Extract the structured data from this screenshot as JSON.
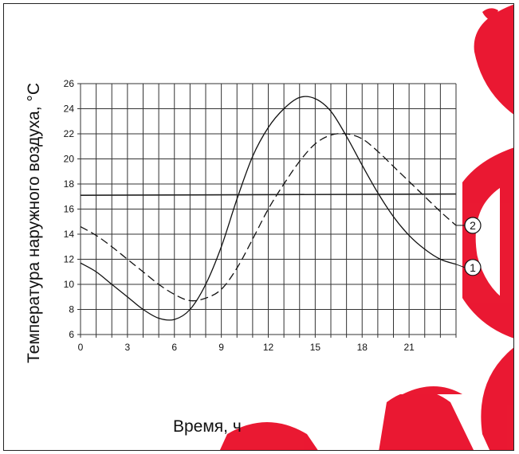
{
  "chart_data": {
    "type": "line",
    "xlabel": "Время, ч",
    "ylabel": "Температура наружного воздуха, °С",
    "xlim": [
      0,
      24
    ],
    "ylim": [
      6,
      26
    ],
    "x_ticks": [
      0,
      3,
      6,
      9,
      12,
      15,
      18,
      21
    ],
    "y_ticks": [
      6,
      8,
      10,
      12,
      14,
      16,
      18,
      20,
      22,
      24,
      26
    ],
    "grid": true,
    "series": [
      {
        "name": "1",
        "style": "solid",
        "color": "#111111",
        "x": [
          0,
          1,
          2,
          3,
          4,
          5,
          6,
          7,
          8,
          9,
          10,
          11,
          12,
          13,
          14,
          15,
          16,
          17,
          18,
          19,
          20,
          21,
          22,
          23,
          24
        ],
        "y": [
          11.7,
          11.0,
          10.0,
          9.0,
          8.0,
          7.3,
          7.2,
          8.0,
          10.0,
          13.0,
          16.8,
          20.2,
          22.5,
          24.0,
          24.9,
          24.8,
          23.8,
          21.8,
          19.5,
          17.3,
          15.4,
          13.9,
          12.8,
          12.0,
          11.6
        ]
      },
      {
        "name": "2",
        "style": "dashed",
        "color": "#111111",
        "x": [
          0,
          1,
          2,
          3,
          4,
          5,
          6,
          7,
          8,
          9,
          10,
          11,
          12,
          13,
          14,
          15,
          16,
          17,
          18,
          19,
          20,
          21,
          22,
          23,
          24
        ],
        "y": [
          14.6,
          13.9,
          13.0,
          12.0,
          11.0,
          10.0,
          9.2,
          8.7,
          8.9,
          9.6,
          11.3,
          13.6,
          16.0,
          18.0,
          19.8,
          21.2,
          21.9,
          22.0,
          21.6,
          20.6,
          19.4,
          18.2,
          17.0,
          15.8,
          14.7
        ]
      },
      {
        "name": "",
        "style": "solid",
        "color": "#222222",
        "x": [
          0,
          24
        ],
        "y": [
          17.1,
          17.2
        ]
      }
    ],
    "annotations": [
      "1",
      "2"
    ]
  },
  "watermark_color": "#e8001c"
}
